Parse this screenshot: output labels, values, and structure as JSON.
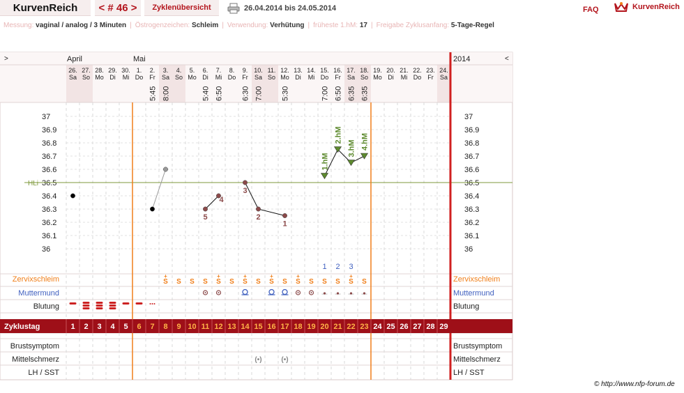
{
  "header": {
    "logo": "KurvenReich",
    "cycle_nav": "< # 46 >",
    "overview_label": "Zyklenübersicht",
    "date_range": "26.04.2014 bis 24.05.2014",
    "faq_label": "FAQ",
    "brand_label": "KurvenReich",
    "print_icon": "printer-icon",
    "brand_icon": "crown-icon"
  },
  "info_bar": [
    {
      "key": "Messung:",
      "value": "vaginal / analog / 3 Minuten"
    },
    {
      "key": "Östrogenzeichen:",
      "value": "Schleim"
    },
    {
      "key": "Verwendung:",
      "value": "Verhütung"
    },
    {
      "key": "früheste 1.hM:",
      "value": "17"
    },
    {
      "key": "Freigabe Zyklusanfang:",
      "value": "5-Tage-Regel"
    }
  ],
  "nav": {
    "left": ">",
    "right": "<",
    "year": "2014"
  },
  "months": [
    {
      "label": "April",
      "day_index": 0
    },
    {
      "label": "Mai",
      "day_index": 5
    }
  ],
  "days": [
    {
      "num": "26.",
      "wd": "Sa",
      "weekend": true,
      "time": ""
    },
    {
      "num": "27.",
      "wd": "So",
      "weekend": true,
      "time": ""
    },
    {
      "num": "28.",
      "wd": "Mo",
      "weekend": false,
      "time": ""
    },
    {
      "num": "29.",
      "wd": "Di",
      "weekend": false,
      "time": ""
    },
    {
      "num": "30.",
      "wd": "Mi",
      "weekend": false,
      "time": ""
    },
    {
      "num": "1.",
      "wd": "Do",
      "weekend": false,
      "time": ""
    },
    {
      "num": "2.",
      "wd": "Fr",
      "weekend": false,
      "time": "5:45"
    },
    {
      "num": "3.",
      "wd": "Sa",
      "weekend": true,
      "time": "8:00"
    },
    {
      "num": "4.",
      "wd": "So",
      "weekend": true,
      "time": ""
    },
    {
      "num": "5.",
      "wd": "Mo",
      "weekend": false,
      "time": ""
    },
    {
      "num": "6.",
      "wd": "Di",
      "weekend": false,
      "time": "5:40"
    },
    {
      "num": "7.",
      "wd": "Mi",
      "weekend": false,
      "time": "6:50"
    },
    {
      "num": "8.",
      "wd": "Do",
      "weekend": false,
      "time": ""
    },
    {
      "num": "9.",
      "wd": "Fr",
      "weekend": false,
      "time": "6:30"
    },
    {
      "num": "10.",
      "wd": "Sa",
      "weekend": true,
      "time": "7:00"
    },
    {
      "num": "11.",
      "wd": "So",
      "weekend": true,
      "time": ""
    },
    {
      "num": "12.",
      "wd": "Mo",
      "weekend": false,
      "time": "5:30"
    },
    {
      "num": "13.",
      "wd": "Di",
      "weekend": false,
      "time": ""
    },
    {
      "num": "14.",
      "wd": "Mi",
      "weekend": false,
      "time": ""
    },
    {
      "num": "15.",
      "wd": "Do",
      "weekend": false,
      "time": "7:00"
    },
    {
      "num": "16.",
      "wd": "Fr",
      "weekend": false,
      "time": "6:50"
    },
    {
      "num": "17.",
      "wd": "Sa",
      "weekend": true,
      "time": "6:35"
    },
    {
      "num": "18.",
      "wd": "So",
      "weekend": true,
      "time": "6:35"
    },
    {
      "num": "19.",
      "wd": "Mo",
      "weekend": false,
      "time": ""
    },
    {
      "num": "20.",
      "wd": "Di",
      "weekend": false,
      "time": ""
    },
    {
      "num": "21.",
      "wd": "Mi",
      "weekend": false,
      "time": ""
    },
    {
      "num": "22.",
      "wd": "Do",
      "weekend": false,
      "time": ""
    },
    {
      "num": "23.",
      "wd": "Fr",
      "weekend": false,
      "time": ""
    },
    {
      "num": "24.",
      "wd": "Sa",
      "weekend": true,
      "time": ""
    }
  ],
  "chart_data": {
    "type": "line",
    "y_ticks": [
      "37",
      "36.9",
      "36.8",
      "36.7",
      "36.6",
      "36.5",
      "36.4",
      "36.3",
      "36.2",
      "36.1",
      "36"
    ],
    "ylim": [
      36.0,
      37.0
    ],
    "hl_label": "HLi",
    "hl_value": 36.5,
    "temperatures": [
      {
        "day": 1,
        "value": 36.4,
        "kind": "black"
      },
      {
        "day": 7,
        "value": 36.3,
        "kind": "black"
      },
      {
        "day": 8,
        "value": 36.6,
        "kind": "grey"
      },
      {
        "day": 11,
        "value": 36.3,
        "kind": "brown",
        "label": "5"
      },
      {
        "day": 12,
        "value": 36.4,
        "kind": "brown",
        "label": "4"
      },
      {
        "day": 14,
        "value": 36.5,
        "kind": "brown",
        "label": "3"
      },
      {
        "day": 15,
        "value": 36.3,
        "kind": "brown",
        "label": "2"
      },
      {
        "day": 17,
        "value": 36.25,
        "kind": "brown",
        "label": "1"
      },
      {
        "day": 20,
        "value": 36.55,
        "kind": "green",
        "label": "1.hM"
      },
      {
        "day": 21,
        "value": 36.75,
        "kind": "green",
        "label": "2.hM"
      },
      {
        "day": 22,
        "value": 36.65,
        "kind": "green",
        "label": "3.hM"
      },
      {
        "day": 23,
        "value": 36.7,
        "kind": "green",
        "label": "4.hM"
      }
    ],
    "line_segments": [
      [
        1,
        2
      ],
      [
        3,
        4
      ],
      [
        5,
        6
      ],
      [
        6,
        7
      ],
      [
        8,
        9
      ],
      [
        9,
        10
      ],
      [
        10,
        11
      ]
    ],
    "count_labels": [
      {
        "day": 20,
        "label": "1"
      },
      {
        "day": 21,
        "label": "2"
      },
      {
        "day": 22,
        "label": "3"
      }
    ],
    "cover_line_days": [
      6,
      23
    ]
  },
  "rows": {
    "cervix_label": "Zervixschleim",
    "cervix": [
      {
        "day": 8,
        "sym": "S+"
      },
      {
        "day": 9,
        "sym": "S"
      },
      {
        "day": 10,
        "sym": "S"
      },
      {
        "day": 11,
        "sym": "S"
      },
      {
        "day": 12,
        "sym": "S+"
      },
      {
        "day": 13,
        "sym": "S"
      },
      {
        "day": 14,
        "sym": "S+"
      },
      {
        "day": 15,
        "sym": "S"
      },
      {
        "day": 16,
        "sym": "S+"
      },
      {
        "day": 17,
        "sym": "S"
      },
      {
        "day": 18,
        "sym": "S+"
      },
      {
        "day": 19,
        "sym": "S"
      },
      {
        "day": 20,
        "sym": "S"
      },
      {
        "day": 21,
        "sym": "S"
      },
      {
        "day": 22,
        "sym": "S+"
      },
      {
        "day": 23,
        "sym": "S"
      }
    ],
    "os_label": "Muttermund",
    "os": [
      {
        "day": 11,
        "kind": "closed"
      },
      {
        "day": 12,
        "kind": "closed"
      },
      {
        "day": 14,
        "kind": "open"
      },
      {
        "day": 16,
        "kind": "open"
      },
      {
        "day": 17,
        "kind": "open"
      },
      {
        "day": 18,
        "kind": "closed"
      },
      {
        "day": 19,
        "kind": "closed"
      },
      {
        "day": 20,
        "kind": "dot"
      },
      {
        "day": 21,
        "kind": "dot"
      },
      {
        "day": 22,
        "kind": "dot"
      },
      {
        "day": 23,
        "kind": "dot"
      }
    ],
    "bleed_label": "Blutung",
    "bleeding": [
      {
        "day": 1,
        "strength": 1
      },
      {
        "day": 2,
        "strength": 3
      },
      {
        "day": 3,
        "strength": 3
      },
      {
        "day": 4,
        "strength": 3
      },
      {
        "day": 5,
        "strength": 1
      },
      {
        "day": 6,
        "strength": 1
      },
      {
        "day": 7,
        "strength": 0
      }
    ],
    "cycle_label": "Zyklustag",
    "cycle_days": [
      "1",
      "2",
      "3",
      "4",
      "5",
      "6",
      "7",
      "8",
      "9",
      "10",
      "11",
      "12",
      "13",
      "14",
      "15",
      "16",
      "17",
      "18",
      "19",
      "20",
      "21",
      "22",
      "23",
      "24",
      "25",
      "26",
      "27",
      "28",
      "29"
    ],
    "breast_label": "Brustsymptom",
    "pain_label": "Mittelschmerz",
    "pain_days": [
      15,
      17
    ],
    "lh_label": "LH / SST"
  },
  "colors": {
    "accent": "#b3151d",
    "orange": "#f07f1a",
    "hl_line": "#7f9a3c",
    "green": "#5d8a2e",
    "brown": "#8b4a4a",
    "blue": "#3f5fbf",
    "weekend": "#f2e4e4",
    "red_bar": "#cc2222"
  },
  "copyright": "© http://www.nfp-forum.de"
}
